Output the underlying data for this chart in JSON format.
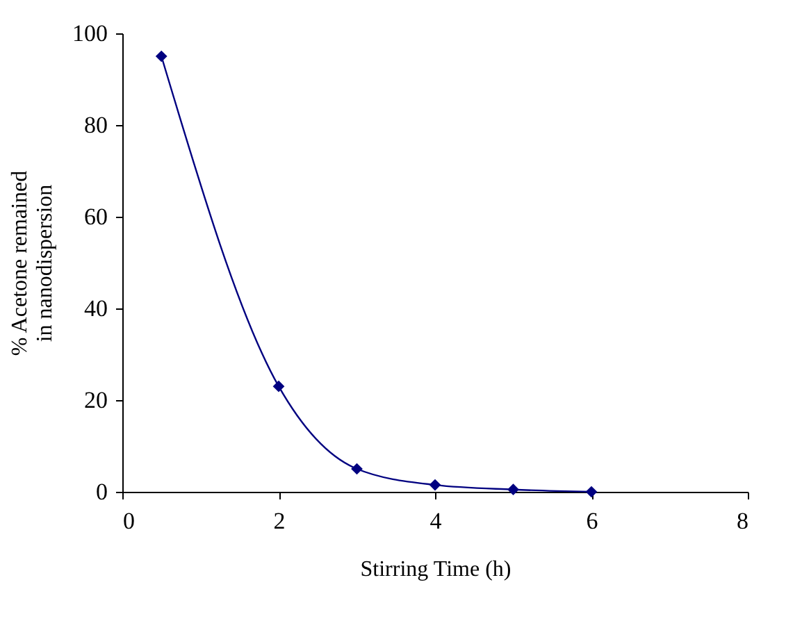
{
  "chart_data": {
    "type": "line",
    "xlabel": "Stirring Time (h)",
    "ylabel": "% Acetone remained\nin nanodispersion",
    "x": [
      0.5,
      2,
      3,
      4,
      5,
      6
    ],
    "series": [
      {
        "color": "#000080",
        "values": [
          95,
          23,
          5,
          1.5,
          0.5,
          0
        ]
      }
    ],
    "xlim": [
      0,
      8
    ],
    "xticks": [
      0,
      2,
      4,
      6,
      8
    ],
    "ylim": [
      0,
      100
    ],
    "yticks": [
      0,
      20,
      40,
      60,
      80,
      100
    ],
    "grid": false,
    "marker": "diamond",
    "line_style": "solid"
  }
}
